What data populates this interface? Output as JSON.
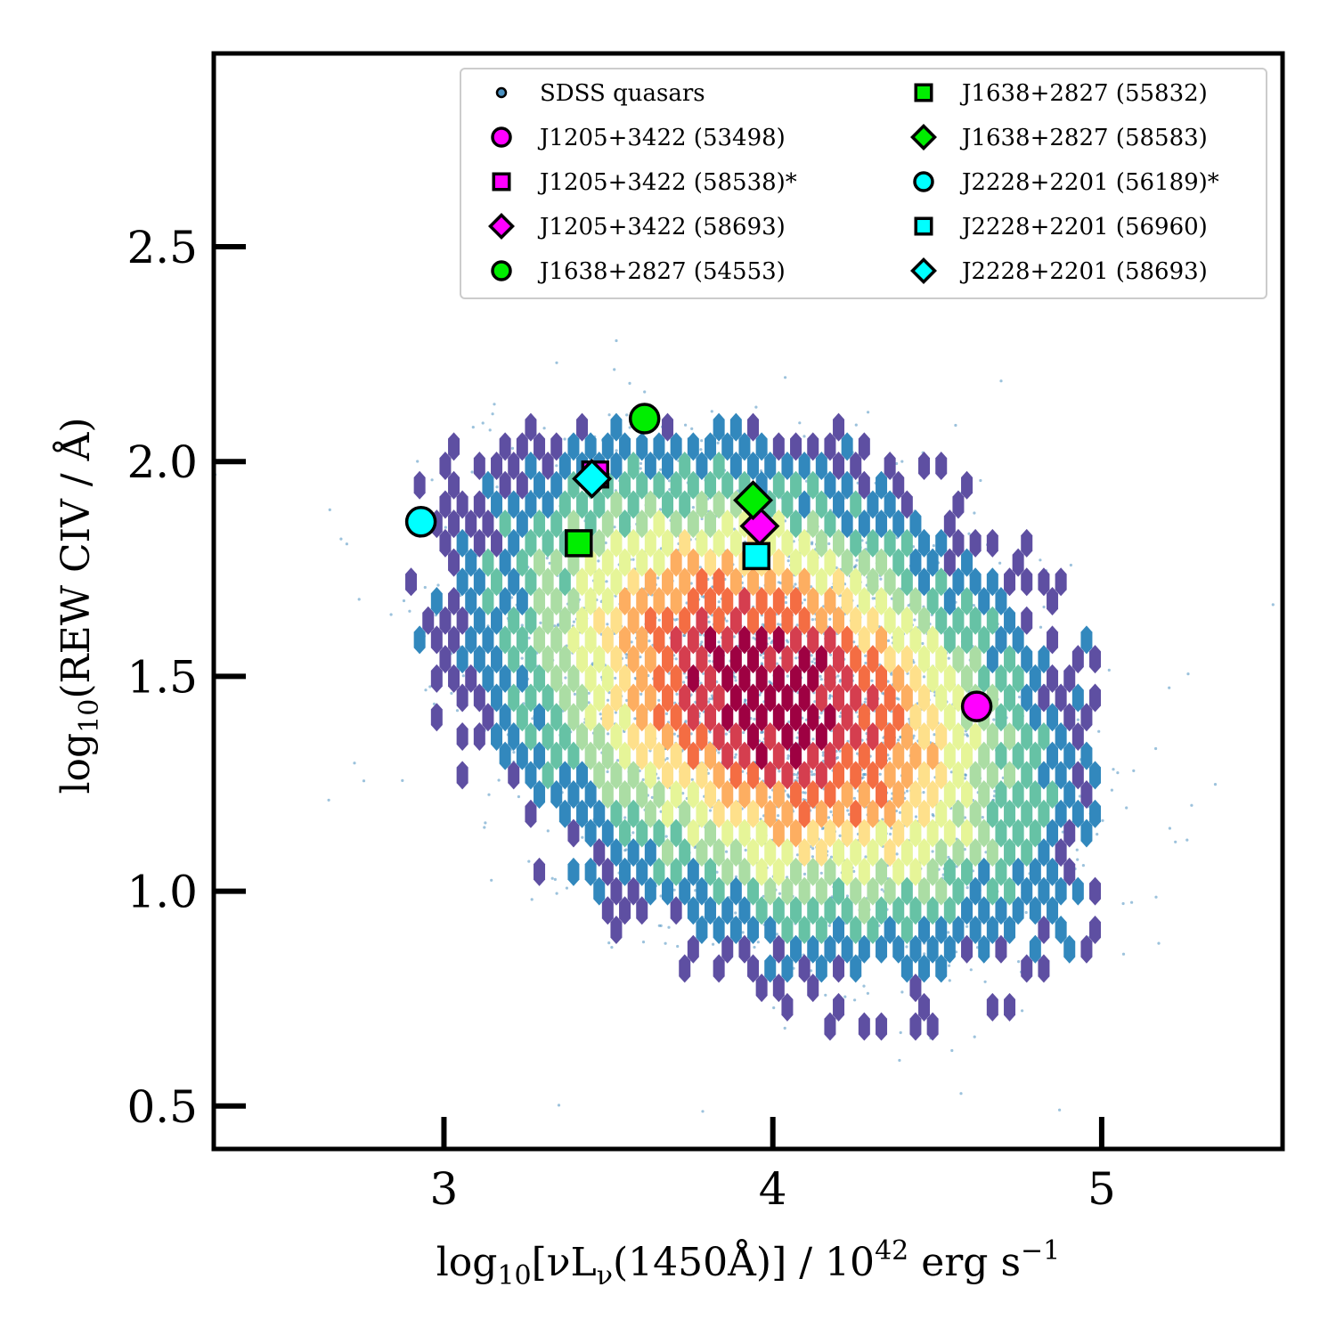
{
  "chart_data": {
    "type": "scatter",
    "title": "",
    "xlabel": {
      "main": "log",
      "sub": "10",
      "rest": "[νL",
      "sub2": "ν",
      "rest2": "(1450Å)] / 10",
      "sup": "42",
      "rest3": " erg s",
      "sup2": "−1"
    },
    "ylabel": {
      "main": "log",
      "sub": "10",
      "rest": "(REW CIV / Å)"
    },
    "xlim": [
      2.3,
      5.55
    ],
    "ylim": [
      0.4,
      2.95
    ],
    "xticks": [
      "3",
      "4",
      "5"
    ],
    "xtick_values": [
      3,
      4,
      5
    ],
    "yticks": [
      "0.5",
      "1.0",
      "1.5",
      "2.0",
      "2.5"
    ],
    "ytick_values": [
      0.5,
      1.0,
      1.5,
      2.0,
      2.5
    ],
    "grid": false,
    "legend_position": "top-right",
    "background_distribution": {
      "name": "SDSS quasars",
      "representation": "hexbin density with scattered points",
      "center": [
        4.0,
        1.45
      ],
      "colormap": [
        "#5e4fa2",
        "#3288bd",
        "#66c2a5",
        "#abdda4",
        "#e6f598",
        "#fee08b",
        "#fdae61",
        "#f46d43",
        "#d53e4f",
        "#9e0142"
      ],
      "point_color": "#4a90c0"
    },
    "series": [
      {
        "name": "SDSS quasars",
        "marker": "point",
        "color": "#4a90c0"
      },
      {
        "name": "J1205+3422 (53498)",
        "marker": "circle",
        "color": "#ff00ff",
        "x": [
          4.62
        ],
        "y": [
          1.43
        ]
      },
      {
        "name": "J1205+3422 (58538)*",
        "marker": "square",
        "color": "#ff00ff",
        "x": [
          3.46
        ],
        "y": [
          1.97
        ]
      },
      {
        "name": "J1205+3422 (58693)",
        "marker": "diamond",
        "color": "#ff00ff",
        "x": [
          3.96
        ],
        "y": [
          1.85
        ]
      },
      {
        "name": "J1638+2827 (54553)",
        "marker": "circle",
        "color": "#00ee00",
        "x": [
          3.61
        ],
        "y": [
          2.1
        ]
      },
      {
        "name": "J1638+2827 (55832)",
        "marker": "square",
        "color": "#00ee00",
        "x": [
          3.41
        ],
        "y": [
          1.81
        ]
      },
      {
        "name": "J1638+2827 (58583)",
        "marker": "diamond",
        "color": "#00ee00",
        "x": [
          3.94
        ],
        "y": [
          1.91
        ]
      },
      {
        "name": "J2228+2201 (56189)*",
        "marker": "circle",
        "color": "#00ffff",
        "x": [
          2.93
        ],
        "y": [
          1.86
        ]
      },
      {
        "name": "J2228+2201 (56960)",
        "marker": "square",
        "color": "#00ffff",
        "x": [
          3.95
        ],
        "y": [
          1.78
        ]
      },
      {
        "name": "J2228+2201 (58693)",
        "marker": "diamond",
        "color": "#00ffff",
        "x": [
          3.45
        ],
        "y": [
          1.96
        ]
      }
    ]
  }
}
